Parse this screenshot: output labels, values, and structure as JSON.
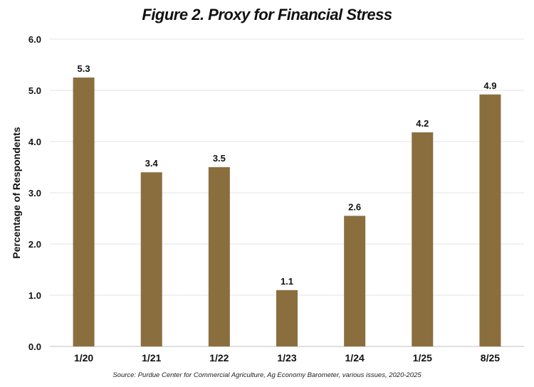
{
  "chart_data": {
    "type": "bar",
    "title": "Figure 2.  Proxy for Financial Stress",
    "xlabel": "",
    "ylabel": "Percentage of Respondents",
    "categories": [
      "1/20",
      "1/21",
      "1/22",
      "1/23",
      "1/24",
      "1/25",
      "8/25"
    ],
    "values": [
      5.3,
      3.4,
      3.5,
      1.1,
      2.6,
      4.2,
      4.9
    ],
    "bar_heights": [
      5.25,
      3.4,
      3.5,
      1.1,
      2.55,
      4.18,
      4.92
    ],
    "data_labels": [
      "5.3",
      "3.4",
      "3.5",
      "1.1",
      "2.6",
      "4.2",
      "4.9"
    ],
    "ylim": [
      0,
      6
    ],
    "yticks": [
      "0.0",
      "1.0",
      "2.0",
      "3.0",
      "4.0",
      "5.0",
      "6.0"
    ],
    "grid": true,
    "bar_color": "#8B6E3E",
    "source": "Source: Purdue Center for Commercial Agriculture, Ag Economy Barometer, various issues, 2020-2025"
  }
}
